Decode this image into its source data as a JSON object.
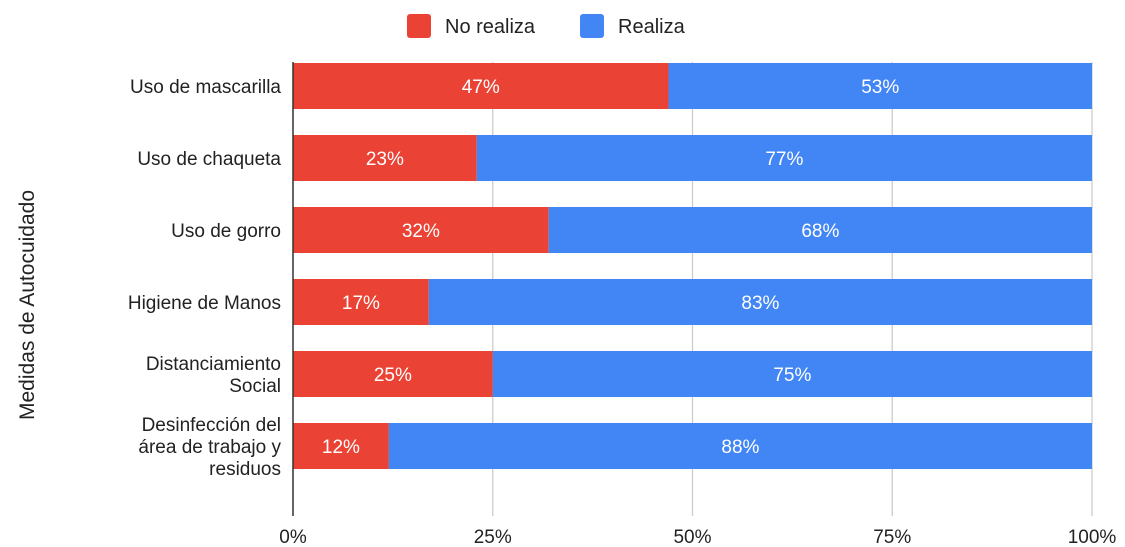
{
  "chart_data": {
    "type": "bar",
    "orientation": "horizontal",
    "stacked": true,
    "ylabel": "Medidas de Autocuidado",
    "xlabel": "",
    "xlim": [
      0,
      100
    ],
    "x_tick_labels": [
      "0%",
      "25%",
      "50%",
      "75%",
      "100%"
    ],
    "grid": true,
    "legend_position": "top",
    "categories": [
      [
        "Uso de mascarilla"
      ],
      [
        "Uso de chaqueta"
      ],
      [
        "Uso de gorro"
      ],
      [
        "Higiene de Manos"
      ],
      [
        "Distanciamiento",
        "Social"
      ],
      [
        "Desinfección del",
        "área de trabajo y",
        "residuos"
      ]
    ],
    "series": [
      {
        "name": "No realiza",
        "color": "#ea4335",
        "values": [
          47,
          23,
          32,
          17,
          25,
          12
        ],
        "labels": [
          "47%",
          "23%",
          "32%",
          "17%",
          "25%",
          "12%"
        ]
      },
      {
        "name": "Realiza",
        "color": "#4285f4",
        "values": [
          53,
          77,
          68,
          83,
          75,
          88
        ],
        "labels": [
          "53%",
          "77%",
          "68%",
          "83%",
          "75%",
          "88%"
        ]
      }
    ]
  }
}
